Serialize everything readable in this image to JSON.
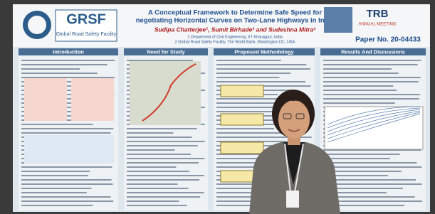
{
  "header": {
    "logo": "GRSF",
    "logo_subtitle": "Global Road Safety Facility",
    "title_lines": [
      "A Conceptual Framework to Determine Safe Speed for",
      "negotiating Horizontal Curves on Two-Lane Highways in India"
    ],
    "authors": "Sudipa Chatterjee¹, Sumit Birhade² and Sudeshna Mitra²",
    "affiliations": [
      "1 Department of Civil Engineering, IIT Kharagpur, India",
      "2 Global Road Safety Facility, The World Bank, Washington DC, USA"
    ],
    "trb": "TRB",
    "trb_subtitle": "ANNUAL MEETING",
    "paper_no": "Paper No. 20-04433"
  },
  "sections": [
    "Introduction",
    "Need for Study",
    "Proposed Methodology",
    "Results And Discussions"
  ]
}
